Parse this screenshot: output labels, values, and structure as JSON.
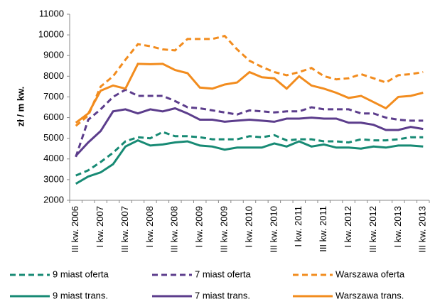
{
  "chart_data": {
    "type": "line",
    "y_label": "zł / m kw.",
    "categories": [
      "III kw. 2006",
      null,
      "I kw. 2007",
      null,
      "III kw. 2007",
      null,
      "I kw. 2008",
      null,
      "III kw. 2008",
      null,
      "I kw. 2009",
      null,
      "III kw. 2009",
      null,
      "I kw. 2010",
      null,
      "III kw. 2010",
      null,
      "I kw. 2011",
      null,
      "III kw. 2011",
      null,
      "I kw. 2012",
      null,
      "III kw. 2012",
      null,
      "I kw. 2013",
      null,
      "III kw. 2013"
    ],
    "ylim": [
      2000,
      11000
    ],
    "yticks": [
      2000,
      3000,
      4000,
      5000,
      6000,
      7000,
      8000,
      9000,
      10000,
      11000
    ],
    "series": [
      {
        "name": "9 miast oferta",
        "color": "#178a74",
        "line_style": "dashed",
        "values": [
          3200,
          3450,
          3850,
          4300,
          4850,
          5050,
          5000,
          5300,
          5100,
          5100,
          5050,
          4950,
          4950,
          4950,
          5100,
          5050,
          5150,
          4900,
          4950,
          4950,
          4850,
          4850,
          4800,
          4950,
          4900,
          4900,
          4950,
          5050,
          5050
        ]
      },
      {
        "name": "7 miast oferta",
        "color": "#5c3d8c",
        "line_style": "dashed",
        "values": [
          4100,
          5900,
          6400,
          7000,
          7350,
          7050,
          7050,
          7050,
          6800,
          6500,
          6450,
          6350,
          6250,
          6150,
          6350,
          6300,
          6250,
          6300,
          6300,
          6500,
          6400,
          6400,
          6400,
          6200,
          6200,
          6000,
          5900,
          5850,
          5850
        ]
      },
      {
        "name": "Warszawa oferta",
        "color": "#f28c1e",
        "line_style": "dashed",
        "values": [
          5600,
          6100,
          7500,
          8000,
          8800,
          9550,
          9450,
          9300,
          9250,
          9800,
          9800,
          9800,
          9950,
          9300,
          8750,
          8450,
          8200,
          8050,
          8200,
          8400,
          8000,
          7850,
          7900,
          8100,
          7900,
          7700,
          8050,
          8100,
          8200
        ]
      },
      {
        "name": "9 miast trans.",
        "color": "#178a74",
        "line_style": "solid",
        "values": [
          2800,
          3150,
          3350,
          3750,
          4600,
          4900,
          4650,
          4700,
          4800,
          4850,
          4650,
          4600,
          4450,
          4550,
          4550,
          4550,
          4750,
          4600,
          4850,
          4600,
          4700,
          4550,
          4550,
          4500,
          4600,
          4550,
          4650,
          4650,
          4600
        ]
      },
      {
        "name": "7 miast trans.",
        "color": "#5c3d8c",
        "line_style": "solid",
        "values": [
          4150,
          4800,
          5350,
          6300,
          6400,
          6200,
          6400,
          6300,
          6450,
          6200,
          5900,
          5900,
          5800,
          5850,
          5900,
          5850,
          5800,
          5950,
          5950,
          6000,
          5950,
          5950,
          5750,
          5750,
          5650,
          5400,
          5400,
          5550,
          5450
        ]
      },
      {
        "name": "Warszawa trans.",
        "color": "#f28c1e",
        "line_style": "solid",
        "values": [
          5750,
          6200,
          7300,
          7550,
          7400,
          8600,
          8580,
          8600,
          8300,
          8150,
          7450,
          7400,
          7600,
          7700,
          8200,
          7950,
          7900,
          7400,
          8000,
          7550,
          7400,
          7200,
          6950,
          7050,
          6750,
          6450,
          7000,
          7050,
          7200
        ]
      }
    ]
  }
}
